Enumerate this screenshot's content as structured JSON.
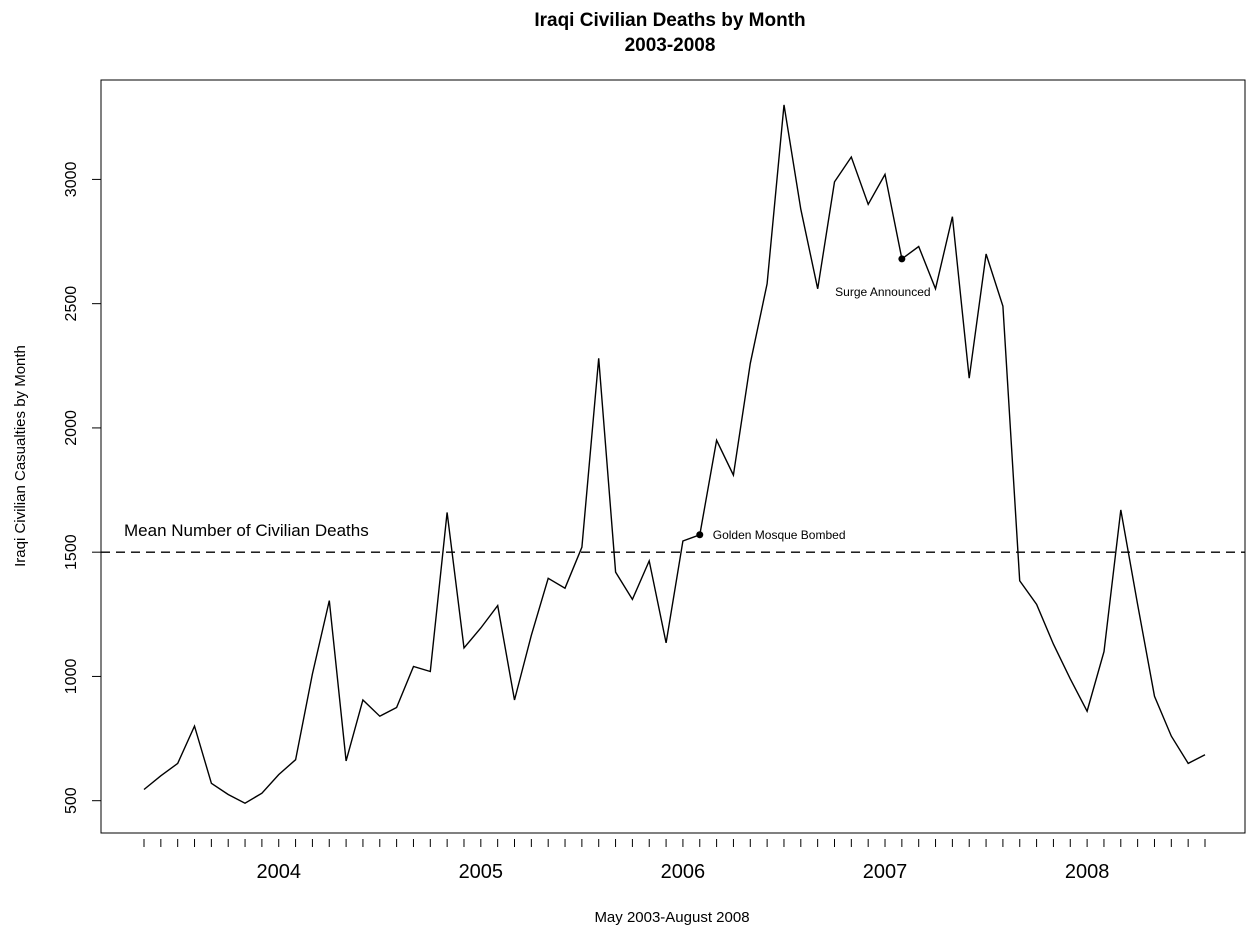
{
  "chart_data": {
    "type": "line",
    "title_line1": "Iraqi Civilian Deaths by Month",
    "title_line2": "2003-2008",
    "xlabel": "May 2003-August 2008",
    "ylabel": "Iraqi Civilian Casualties by Month",
    "x_start": "2003-05",
    "x_end": "2008-08",
    "year_labels": [
      "2004",
      "2005",
      "2006",
      "2007",
      "2008"
    ],
    "yticks": [
      500,
      1000,
      1500,
      2000,
      2500,
      3000
    ],
    "ylim": [
      370,
      3400
    ],
    "grid": false,
    "legend": "none",
    "series": [
      {
        "values": [
          545,
          600,
          650,
          800,
          570,
          525,
          490,
          530,
          605,
          665,
          1010,
          1305,
          660,
          905,
          840,
          875,
          1040,
          1020,
          1660,
          1115,
          1195,
          1285,
          905,
          1165,
          1395,
          1355,
          1520,
          2280,
          1420,
          1310,
          1465,
          1135,
          1545,
          1570,
          1950,
          1810,
          2260,
          2580,
          3300,
          2880,
          2560,
          2990,
          3090,
          2900,
          3020,
          2680,
          2730,
          2560,
          2850,
          2200,
          2700,
          2490,
          1385,
          1290,
          1130,
          990,
          860,
          1100,
          1670,
          1290,
          920,
          760,
          650,
          685
        ]
      }
    ],
    "mean_line": {
      "value": 1500,
      "label": "Mean Number of Civilian Deaths"
    },
    "annotations": [
      {
        "index": 33,
        "label": "Golden Mosque Bombed"
      },
      {
        "index": 45,
        "label": "Surge Announced"
      }
    ]
  }
}
